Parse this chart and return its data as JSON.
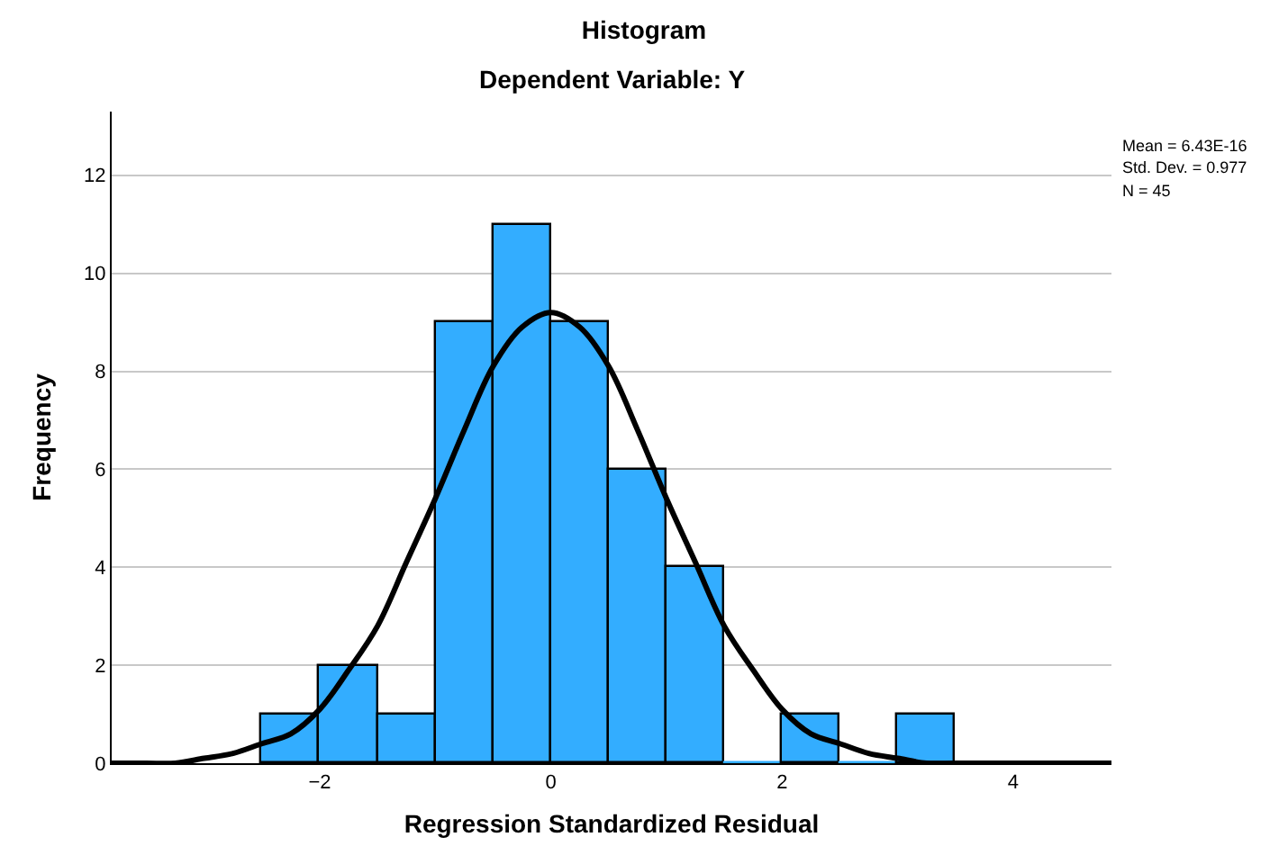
{
  "chart_data": {
    "type": "histogram",
    "title": "Histogram",
    "subtitle": "Dependent Variable: Y",
    "xlabel": "Regression Standardized Residual",
    "ylabel": "Frequency",
    "bins": [
      -2.5,
      -2,
      -1.5,
      -1,
      -0.5,
      0,
      0.5,
      1,
      1.5,
      2,
      2.5,
      3,
      3.5
    ],
    "values": [
      1,
      2,
      1,
      9,
      11,
      9,
      6,
      4,
      0,
      1,
      0,
      1
    ],
    "color": "#33adff",
    "series": [
      {
        "type": "line",
        "color": "#000000",
        "x": [
          -3.8,
          -3.5,
          -3.25,
          -3,
          -2.75,
          -2.5,
          -2.25,
          -2,
          -1.75,
          -1.5,
          -1.25,
          -1,
          -0.75,
          -0.5,
          -0.25,
          0,
          0.25,
          0.5,
          0.75,
          1,
          1.25,
          1.5,
          1.75,
          2,
          2.25,
          2.5,
          2.75,
          3,
          3.25,
          3.5,
          4,
          4.5,
          4.85
        ],
        "values": [
          0,
          0,
          0,
          0.1,
          0.2,
          0.4,
          0.6,
          1.1,
          1.9,
          2.8,
          4.1,
          5.4,
          6.8,
          8.1,
          8.9,
          9.2,
          8.9,
          8.1,
          6.8,
          5.4,
          4.1,
          2.8,
          1.9,
          1.1,
          0.6,
          0.4,
          0.2,
          0.1,
          0,
          0,
          0,
          0,
          0
        ]
      }
    ],
    "xlim": [
      -3.8,
      4.85
    ],
    "xticks": [
      -2,
      0,
      2,
      4
    ],
    "ylim": [
      0,
      13.3
    ],
    "yticks": [
      0,
      2,
      4,
      6,
      8,
      10,
      12
    ],
    "grid": "y",
    "marker": "none",
    "line_style": "solid",
    "annotations": [
      "Mean = 6.43E-16",
      "Std. Dev. = 0.977",
      "N = 45"
    ]
  }
}
